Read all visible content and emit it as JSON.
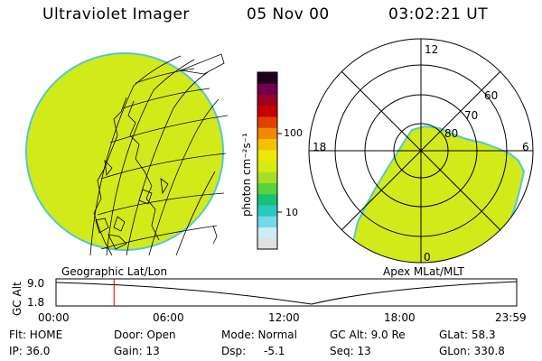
{
  "header": {
    "instrument": "Ultraviolet Imager",
    "date": "05 Nov 00",
    "time": "03:02:21 UT"
  },
  "left_panel": {
    "caption": "Geographic Lat/Lon"
  },
  "right_panel": {
    "caption": "Apex MLat/MLT",
    "mlt_labels": [
      "12",
      "18",
      "6",
      "0"
    ],
    "mlat_labels": [
      "60",
      "70",
      "80"
    ]
  },
  "colorbar": {
    "unit_label": "photon cm⁻²s⁻¹",
    "tick_labels": [
      "100",
      "10"
    ],
    "colors": [
      "#e0e0e0",
      "#c8eef6",
      "#74d8e8",
      "#2cc8c0",
      "#18c078",
      "#5ad23c",
      "#a8de28",
      "#d8ea14",
      "#ece808",
      "#f2c200",
      "#f08800",
      "#e04000",
      "#c80000",
      "#a00020",
      "#700050",
      "#200020"
    ]
  },
  "timeline": {
    "y_axis_label": "GC Alt",
    "y_ticks": [
      "9.0",
      "1.8"
    ],
    "x_ticks": [
      "00:00",
      "06:00",
      "12:00",
      "18:00",
      "23:59"
    ],
    "current_time_fraction": 0.126
  },
  "info": {
    "row1": {
      "flt": "Flt: HOME",
      "door": "Door: Open",
      "mode": "Mode: Normal",
      "gcalt": "GC Alt: 9.0 Re",
      "glat": "GLat:  58.3"
    },
    "row2": {
      "ip": "IP: 36.0",
      "gain": "Gain: 13",
      "dsp_label": "Dsp:",
      "dsp_value": "-5.1",
      "seq": "Seq: 13",
      "glon": "GLon: 330.8"
    }
  },
  "colors": {
    "emission": "#d2ea1a",
    "emission_edge": "#54c8d0",
    "marker": "#e00000"
  }
}
